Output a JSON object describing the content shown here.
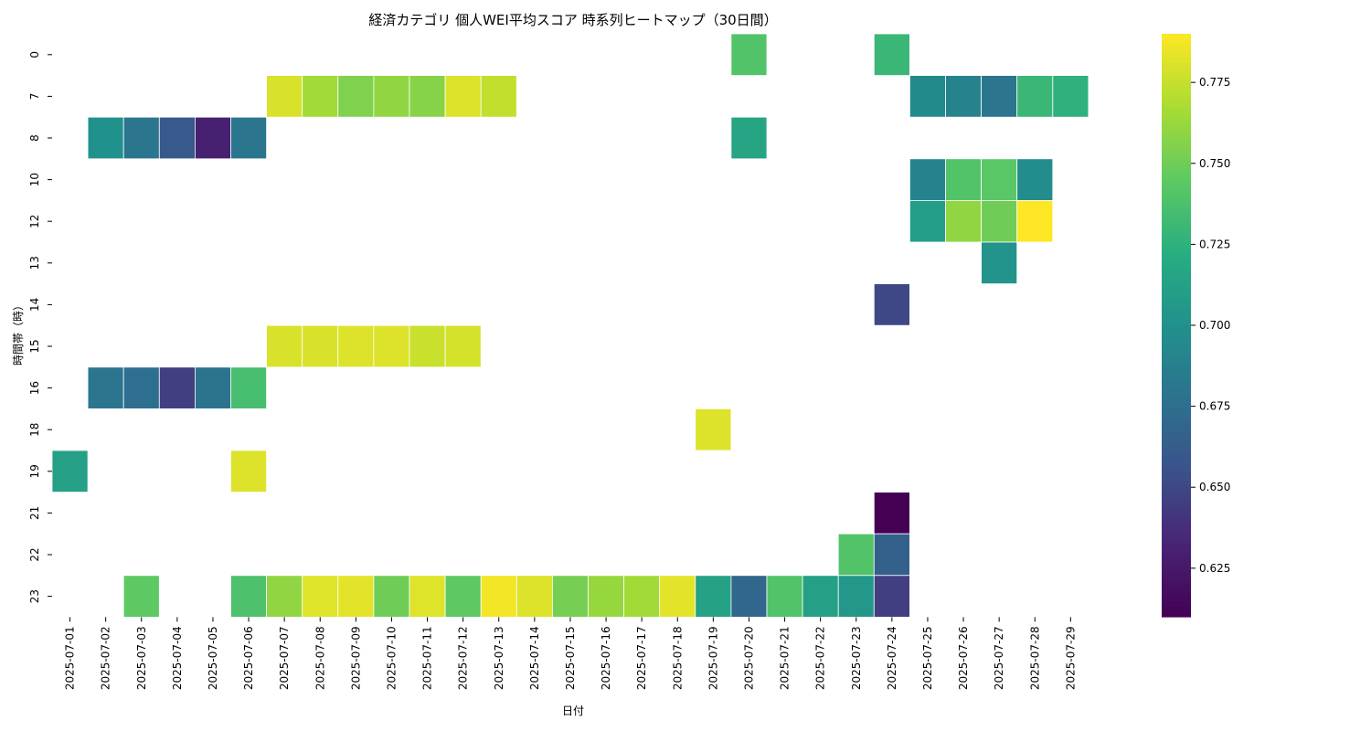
{
  "chart_data": {
    "type": "heatmap",
    "title": "経済カテゴリ 個人WEI平均スコア 時系列ヒートマップ（30日間）",
    "xlabel": "日付",
    "ylabel": "時間帯（時）",
    "x_categories": [
      "2025-07-01",
      "2025-07-02",
      "2025-07-03",
      "2025-07-04",
      "2025-07-05",
      "2025-07-06",
      "2025-07-07",
      "2025-07-08",
      "2025-07-09",
      "2025-07-10",
      "2025-07-11",
      "2025-07-12",
      "2025-07-13",
      "2025-07-14",
      "2025-07-15",
      "2025-07-16",
      "2025-07-17",
      "2025-07-18",
      "2025-07-19",
      "2025-07-20",
      "2025-07-21",
      "2025-07-22",
      "2025-07-23",
      "2025-07-24",
      "2025-07-25",
      "2025-07-26",
      "2025-07-27",
      "2025-07-28",
      "2025-07-29"
    ],
    "y_categories": [
      "0",
      "7",
      "8",
      "10",
      "12",
      "13",
      "14",
      "15",
      "16",
      "18",
      "19",
      "21",
      "22",
      "23"
    ],
    "colormap": "viridis",
    "vmin": 0.61,
    "vmax": 0.79,
    "colorbar_ticks": [
      0.625,
      0.65,
      0.675,
      0.7,
      0.725,
      0.75,
      0.775
    ],
    "colorbar_tick_labels": [
      "0.625",
      "0.650",
      "0.675",
      "0.700",
      "0.725",
      "0.750",
      "0.775"
    ],
    "cells": [
      {
        "x": "2025-07-20",
        "y": "0",
        "value": 0.74
      },
      {
        "x": "2025-07-24",
        "y": "0",
        "value": 0.73
      },
      {
        "x": "2025-07-07",
        "y": "7",
        "value": 0.78
      },
      {
        "x": "2025-07-08",
        "y": "7",
        "value": 0.765
      },
      {
        "x": "2025-07-09",
        "y": "7",
        "value": 0.755
      },
      {
        "x": "2025-07-10",
        "y": "7",
        "value": 0.76
      },
      {
        "x": "2025-07-11",
        "y": "7",
        "value": 0.757
      },
      {
        "x": "2025-07-12",
        "y": "7",
        "value": 0.781
      },
      {
        "x": "2025-07-13",
        "y": "7",
        "value": 0.774
      },
      {
        "x": "2025-07-25",
        "y": "7",
        "value": 0.695
      },
      {
        "x": "2025-07-26",
        "y": "7",
        "value": 0.69
      },
      {
        "x": "2025-07-27",
        "y": "7",
        "value": 0.68
      },
      {
        "x": "2025-07-28",
        "y": "7",
        "value": 0.73
      },
      {
        "x": "2025-07-29",
        "y": "7",
        "value": 0.725
      },
      {
        "x": "2025-07-02",
        "y": "8",
        "value": 0.7
      },
      {
        "x": "2025-07-03",
        "y": "8",
        "value": 0.68
      },
      {
        "x": "2025-07-04",
        "y": "8",
        "value": 0.66
      },
      {
        "x": "2025-07-05",
        "y": "8",
        "value": 0.63
      },
      {
        "x": "2025-07-06",
        "y": "8",
        "value": 0.68
      },
      {
        "x": "2025-07-20",
        "y": "8",
        "value": 0.715
      },
      {
        "x": "2025-07-25",
        "y": "10",
        "value": 0.69
      },
      {
        "x": "2025-07-26",
        "y": "10",
        "value": 0.74
      },
      {
        "x": "2025-07-27",
        "y": "10",
        "value": 0.743
      },
      {
        "x": "2025-07-28",
        "y": "10",
        "value": 0.697
      },
      {
        "x": "2025-07-25",
        "y": "12",
        "value": 0.71
      },
      {
        "x": "2025-07-26",
        "y": "12",
        "value": 0.76
      },
      {
        "x": "2025-07-27",
        "y": "12",
        "value": 0.75
      },
      {
        "x": "2025-07-28",
        "y": "12",
        "value": 0.79
      },
      {
        "x": "2025-07-27",
        "y": "13",
        "value": 0.702
      },
      {
        "x": "2025-07-24",
        "y": "14",
        "value": 0.65
      },
      {
        "x": "2025-07-07",
        "y": "15",
        "value": 0.78
      },
      {
        "x": "2025-07-08",
        "y": "15",
        "value": 0.78
      },
      {
        "x": "2025-07-09",
        "y": "15",
        "value": 0.781
      },
      {
        "x": "2025-07-10",
        "y": "15",
        "value": 0.781
      },
      {
        "x": "2025-07-11",
        "y": "15",
        "value": 0.776
      },
      {
        "x": "2025-07-12",
        "y": "15",
        "value": 0.779
      },
      {
        "x": "2025-07-02",
        "y": "16",
        "value": 0.68
      },
      {
        "x": "2025-07-03",
        "y": "16",
        "value": 0.675
      },
      {
        "x": "2025-07-04",
        "y": "16",
        "value": 0.645
      },
      {
        "x": "2025-07-05",
        "y": "16",
        "value": 0.678
      },
      {
        "x": "2025-07-06",
        "y": "16",
        "value": 0.735
      },
      {
        "x": "2025-07-19",
        "y": "18",
        "value": 0.781
      },
      {
        "x": "2025-07-01",
        "y": "19",
        "value": 0.712
      },
      {
        "x": "2025-07-06",
        "y": "19",
        "value": 0.781
      },
      {
        "x": "2025-07-24",
        "y": "21",
        "value": 0.61
      },
      {
        "x": "2025-07-23",
        "y": "22",
        "value": 0.74
      },
      {
        "x": "2025-07-24",
        "y": "22",
        "value": 0.665
      },
      {
        "x": "2025-07-03",
        "y": "23",
        "value": 0.745
      },
      {
        "x": "2025-07-06",
        "y": "23",
        "value": 0.738
      },
      {
        "x": "2025-07-07",
        "y": "23",
        "value": 0.76
      },
      {
        "x": "2025-07-08",
        "y": "23",
        "value": 0.782
      },
      {
        "x": "2025-07-09",
        "y": "23",
        "value": 0.783
      },
      {
        "x": "2025-07-10",
        "y": "23",
        "value": 0.75
      },
      {
        "x": "2025-07-11",
        "y": "23",
        "value": 0.782
      },
      {
        "x": "2025-07-12",
        "y": "23",
        "value": 0.745
      },
      {
        "x": "2025-07-13",
        "y": "23",
        "value": 0.787
      },
      {
        "x": "2025-07-14",
        "y": "23",
        "value": 0.781
      },
      {
        "x": "2025-07-15",
        "y": "23",
        "value": 0.752
      },
      {
        "x": "2025-07-16",
        "y": "23",
        "value": 0.762
      },
      {
        "x": "2025-07-17",
        "y": "23",
        "value": 0.765
      },
      {
        "x": "2025-07-18",
        "y": "23",
        "value": 0.783
      },
      {
        "x": "2025-07-19",
        "y": "23",
        "value": 0.713
      },
      {
        "x": "2025-07-20",
        "y": "23",
        "value": 0.67
      },
      {
        "x": "2025-07-21",
        "y": "23",
        "value": 0.74
      },
      {
        "x": "2025-07-22",
        "y": "23",
        "value": 0.712
      },
      {
        "x": "2025-07-23",
        "y": "23",
        "value": 0.705
      },
      {
        "x": "2025-07-24",
        "y": "23",
        "value": 0.645
      }
    ]
  }
}
